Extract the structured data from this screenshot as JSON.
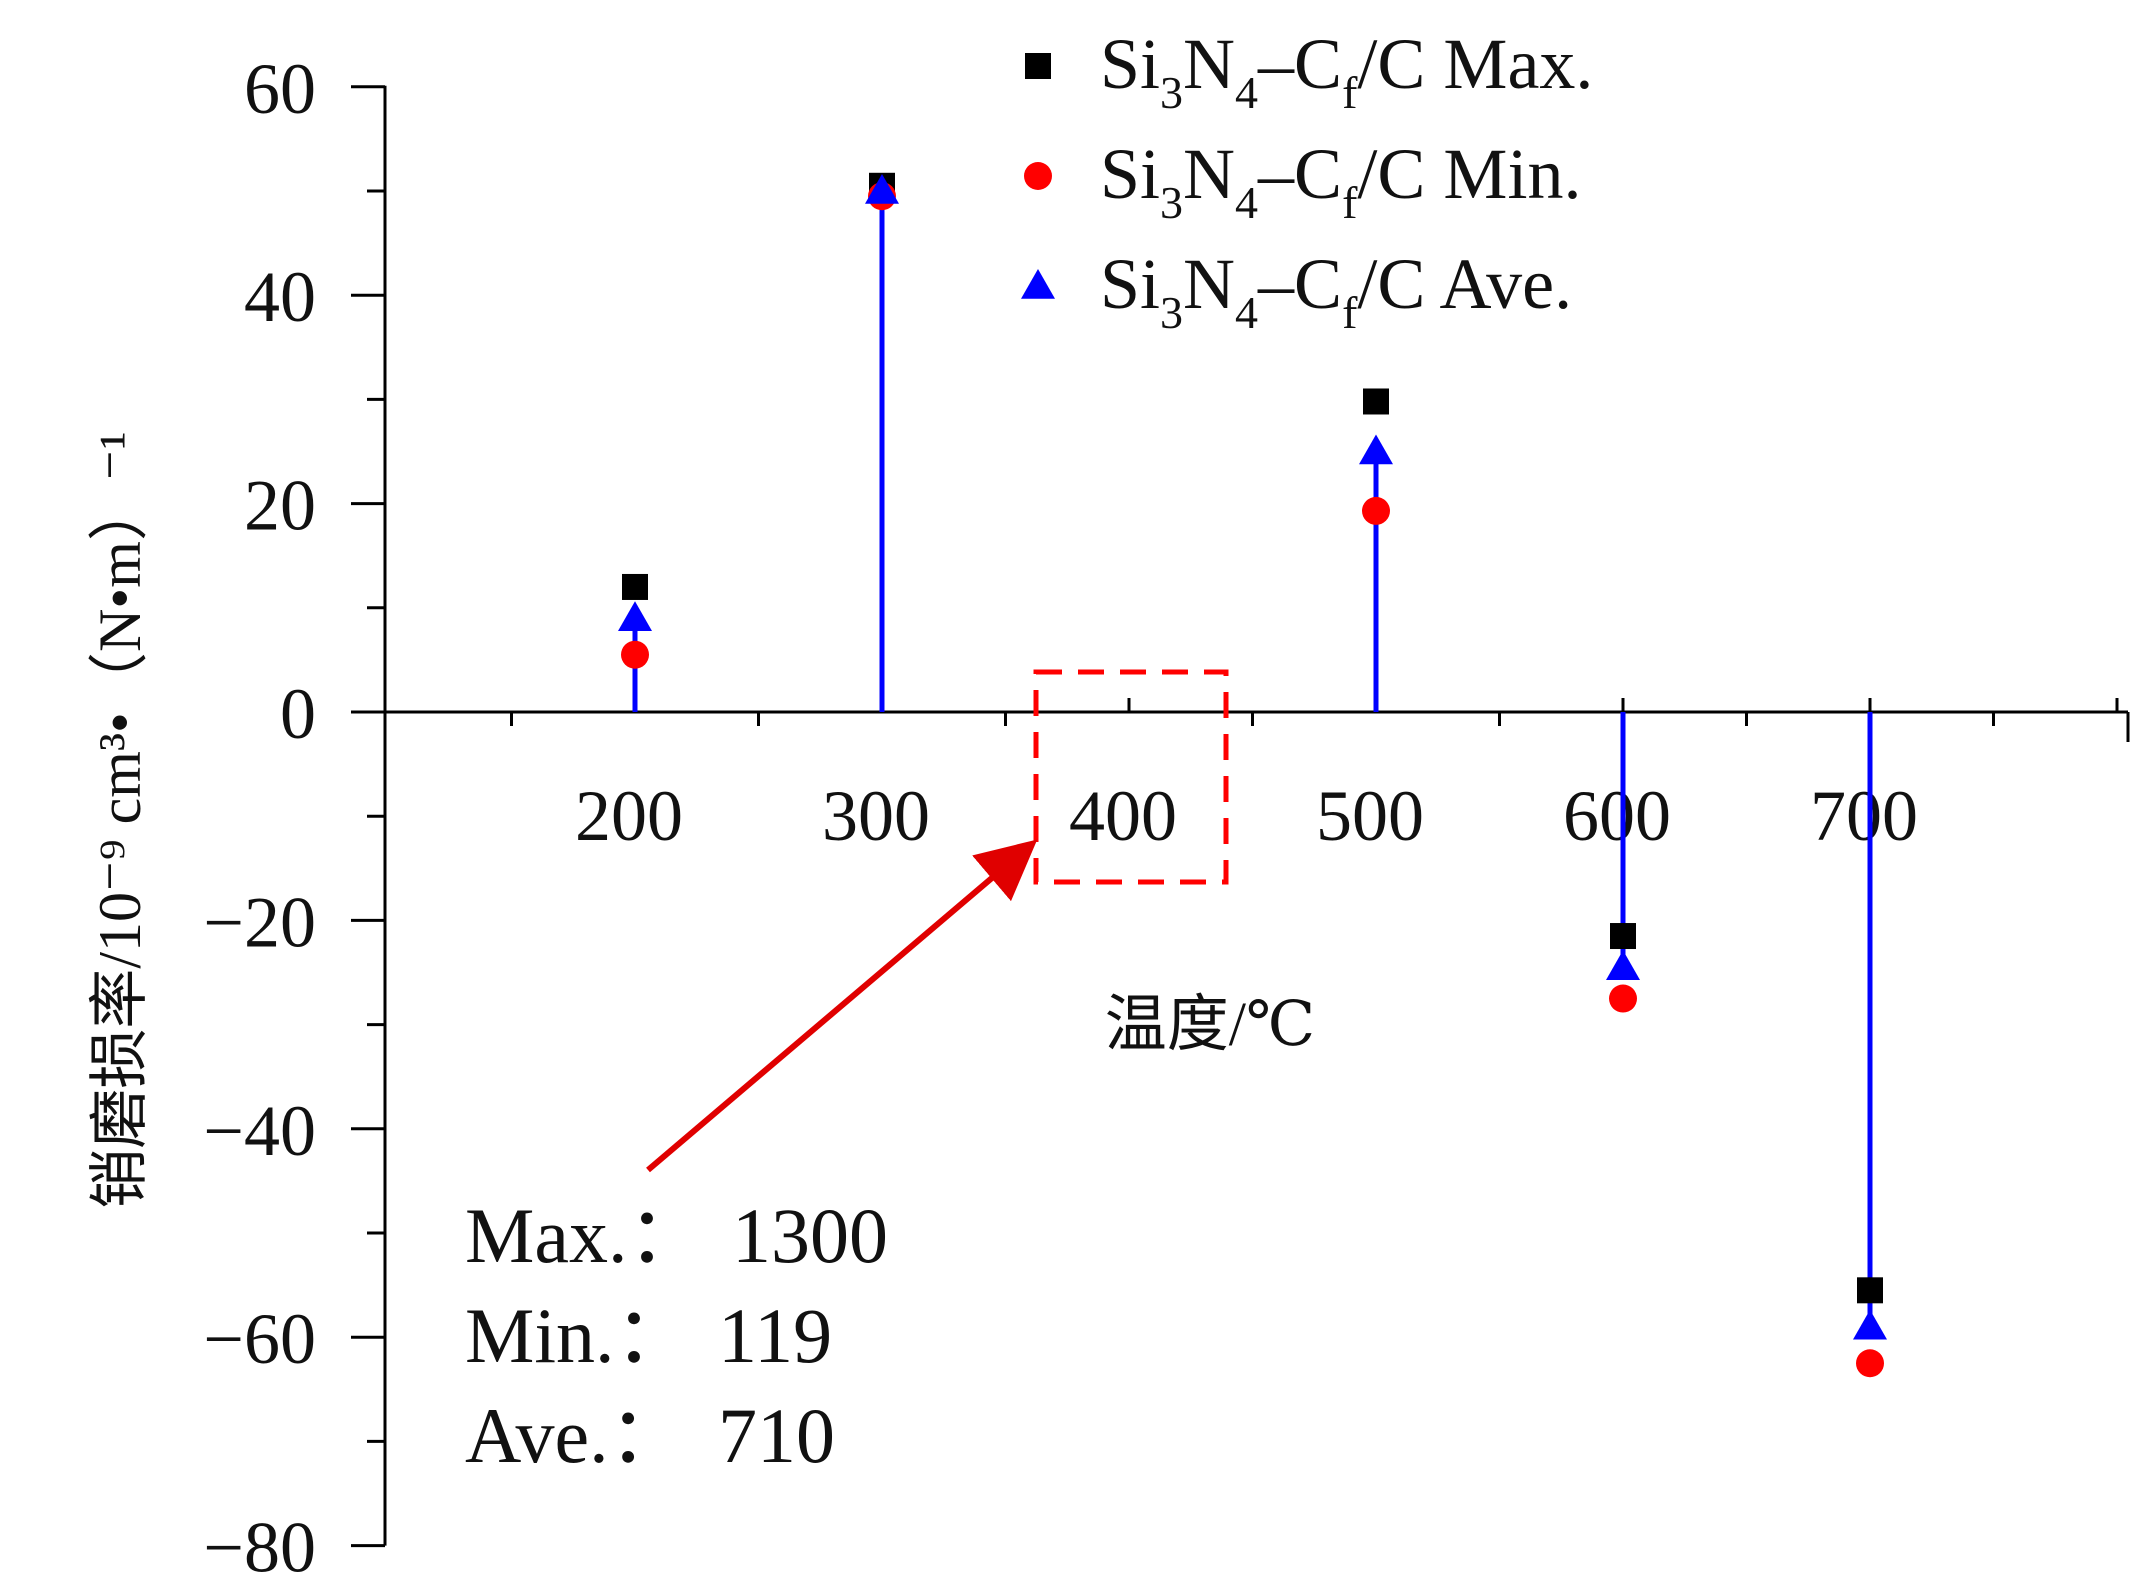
{
  "chart_data": {
    "type": "scatter",
    "xlabel": "温度/℃",
    "ylabel": "销磨损率/10⁻⁹ cm³•（N•m）⁻¹",
    "x_ticks": [
      "200",
      "300",
      "400",
      "500",
      "600",
      "700"
    ],
    "y_ticks": [
      "60",
      "40",
      "20",
      "0",
      "−20",
      "−40",
      "−60",
      "−80"
    ],
    "xlim": [
      100,
      800
    ],
    "ylim": [
      -80,
      60
    ],
    "grid": false,
    "legend_position": "top-right",
    "series": [
      {
        "name": "Si3N4–Cf/C Max.",
        "marker": "square",
        "color": "#000000",
        "points": [
          {
            "x": 200,
            "y": 12
          },
          {
            "x": 300,
            "y": 50.5
          },
          {
            "x": 500,
            "y": 29.8
          },
          {
            "x": 600,
            "y": -21.5
          },
          {
            "x": 700,
            "y": -55.5
          }
        ]
      },
      {
        "name": "Si3N4–Cf/C Min.",
        "marker": "circle",
        "color": "#ff0000",
        "points": [
          {
            "x": 200,
            "y": 5.5
          },
          {
            "x": 300,
            "y": 49.5
          },
          {
            "x": 500,
            "y": 19.3
          },
          {
            "x": 600,
            "y": -27.5
          },
          {
            "x": 700,
            "y": -62.5
          }
        ]
      },
      {
        "name": "Si3N4–Cf/C Ave.",
        "marker": "triangle",
        "color": "#0000ff",
        "stem": true,
        "points": [
          {
            "x": 200,
            "y": 9
          },
          {
            "x": 300,
            "y": 50
          },
          {
            "x": 500,
            "y": 25
          },
          {
            "x": 600,
            "y": -24.5
          },
          {
            "x": 700,
            "y": -59
          }
        ]
      }
    ],
    "legend": [
      {
        "marker": "square",
        "color": "#000000",
        "prefix": "Si",
        "sub1": "3",
        "mid": "N",
        "sub2": "4",
        "dash": "–C",
        "sub3": "f",
        "suffix": "/C Max."
      },
      {
        "marker": "circle",
        "color": "#ff0000",
        "prefix": "Si",
        "sub1": "3",
        "mid": "N",
        "sub2": "4",
        "dash": "–C",
        "sub3": "f",
        "suffix": "/C Min."
      },
      {
        "marker": "triangle",
        "color": "#0000ff",
        "prefix": "Si",
        "sub1": "3",
        "mid": "N",
        "sub2": "4",
        "dash": "–C",
        "sub3": "f",
        "suffix": "/C Ave."
      }
    ],
    "annotation": {
      "highlight_x": 400,
      "highlight_color": "#ff0000",
      "lines": [
        {
          "label": "Max.：",
          "value": "1300"
        },
        {
          "label": "Min.：",
          "value": "119"
        },
        {
          "label": "Ave.：",
          "value": "710"
        }
      ]
    }
  }
}
